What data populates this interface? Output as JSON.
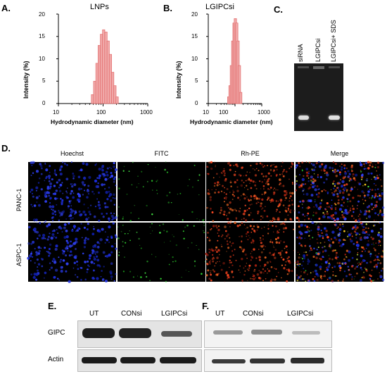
{
  "panels": {
    "a": {
      "letter": "A.",
      "title": "LNPs",
      "ylabel": "Intensity (%)",
      "xlabel": "Hydrodynamic diameter (nm)",
      "yticks": [
        "0",
        "5",
        "10",
        "15",
        "20"
      ],
      "xticks": [
        "10",
        "100",
        "1000"
      ]
    },
    "b": {
      "letter": "B.",
      "title": "LGIPCsi",
      "ylabel": "Intensity (%)",
      "xlabel": "Hydrodynamic diameter (nm)",
      "yticks": [
        "0",
        "5",
        "10",
        "15",
        "20"
      ],
      "xticks": [
        "10",
        "100",
        "1000"
      ]
    },
    "c": {
      "letter": "C.",
      "lanes": [
        "siRNA",
        "LGIPCsi",
        "LGIPCsi+ SDS"
      ]
    },
    "d": {
      "letter": "D.",
      "columns": [
        "Hoechst",
        "FITC",
        "Rh-PE",
        "Merge"
      ],
      "rows": [
        "PANC-1",
        "ASPC-1"
      ]
    },
    "e": {
      "letter": "E.",
      "lanes": [
        "UT",
        "CONsi",
        "LGIPCsi"
      ],
      "rows": [
        "GIPC",
        "Actin"
      ]
    },
    "f": {
      "letter": "F.",
      "lanes": [
        "UT",
        "CONsi",
        "LGIPCsi"
      ]
    }
  },
  "chart_data": [
    {
      "type": "bar",
      "title": "LNPs",
      "xlabel": "Hydrodynamic diameter (nm)",
      "ylabel": "Intensity (%)",
      "xscale": "log",
      "xlim": [
        10,
        1000
      ],
      "ylim": [
        0,
        20
      ],
      "x": [
        58,
        65,
        73,
        82,
        92,
        103,
        116,
        130,
        146,
        164,
        184,
        206
      ],
      "values": [
        2,
        5,
        9,
        13,
        15.5,
        16.5,
        16,
        14,
        11,
        7,
        4,
        1.5
      ],
      "bar_color": "#f0a8a8",
      "bar_edge": "#e06060"
    },
    {
      "type": "bar",
      "title": "LGIPCsi",
      "xlabel": "Hydrodynamic diameter (nm)",
      "ylabel": "Intensity (%)",
      "xscale": "log",
      "xlim": [
        10,
        1000
      ],
      "ylim": [
        0,
        20
      ],
      "x": [
        58,
        65,
        73,
        82,
        92,
        103,
        116,
        130,
        146,
        164
      ],
      "values": [
        1.5,
        4,
        8.5,
        14,
        18,
        19,
        18,
        14,
        8.5,
        2.5
      ],
      "bar_color": "#f0a8a8",
      "bar_edge": "#e06060"
    }
  ]
}
